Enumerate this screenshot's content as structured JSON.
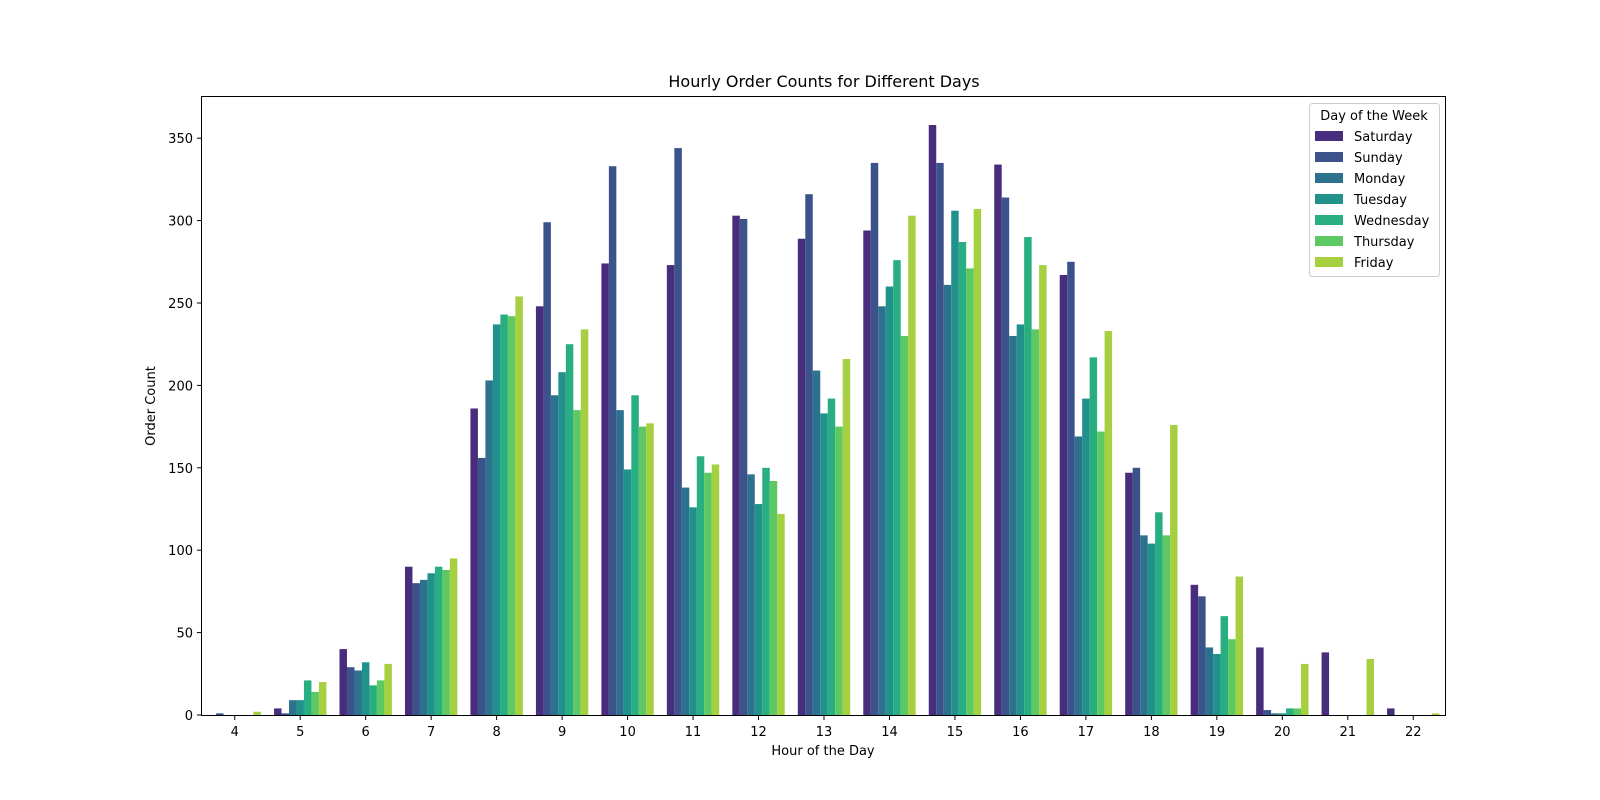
{
  "chart_data": {
    "type": "bar",
    "title": "Hourly Order Counts for Different Days",
    "xlabel": "Hour of the Day",
    "ylabel": "Order Count",
    "ylim": [
      0,
      375
    ],
    "yticks": [
      0,
      50,
      100,
      150,
      200,
      250,
      300,
      350
    ],
    "grid": false,
    "legend_title": "Day of the Week",
    "legend_position": "top-right",
    "categories": [
      "4",
      "5",
      "6",
      "7",
      "8",
      "9",
      "10",
      "11",
      "12",
      "13",
      "14",
      "15",
      "16",
      "17",
      "18",
      "19",
      "20",
      "21",
      "22"
    ],
    "series": [
      {
        "name": "Saturday",
        "color": "#472d7b",
        "values": [
          0,
          4,
          40,
          90,
          186,
          248,
          274,
          273,
          303,
          289,
          294,
          358,
          334,
          267,
          147,
          79,
          41,
          38,
          4
        ]
      },
      {
        "name": "Sunday",
        "color": "#3b528b",
        "values": [
          1,
          1,
          29,
          80,
          156,
          299,
          333,
          344,
          301,
          316,
          335,
          335,
          314,
          275,
          150,
          72,
          3,
          0,
          0
        ]
      },
      {
        "name": "Monday",
        "color": "#2c728e",
        "values": [
          0,
          9,
          27,
          82,
          203,
          194,
          185,
          138,
          146,
          209,
          248,
          261,
          230,
          169,
          109,
          41,
          1,
          0,
          0
        ]
      },
      {
        "name": "Tuesday",
        "color": "#21918c",
        "values": [
          0,
          9,
          32,
          86,
          237,
          208,
          149,
          126,
          128,
          183,
          260,
          306,
          237,
          192,
          104,
          37,
          1,
          0,
          0
        ]
      },
      {
        "name": "Wednesday",
        "color": "#28ae80",
        "values": [
          0,
          21,
          18,
          90,
          243,
          225,
          194,
          157,
          150,
          192,
          276,
          287,
          290,
          217,
          123,
          60,
          4,
          0,
          0
        ]
      },
      {
        "name": "Thursday",
        "color": "#5ec962",
        "values": [
          0,
          14,
          21,
          88,
          242,
          185,
          175,
          147,
          142,
          175,
          230,
          271,
          234,
          172,
          109,
          46,
          4,
          0,
          0
        ]
      },
      {
        "name": "Friday",
        "color": "#a6d040",
        "values": [
          2,
          20,
          31,
          95,
          254,
          234,
          177,
          152,
          122,
          216,
          303,
          307,
          273,
          233,
          176,
          84,
          31,
          34,
          1
        ]
      }
    ]
  }
}
